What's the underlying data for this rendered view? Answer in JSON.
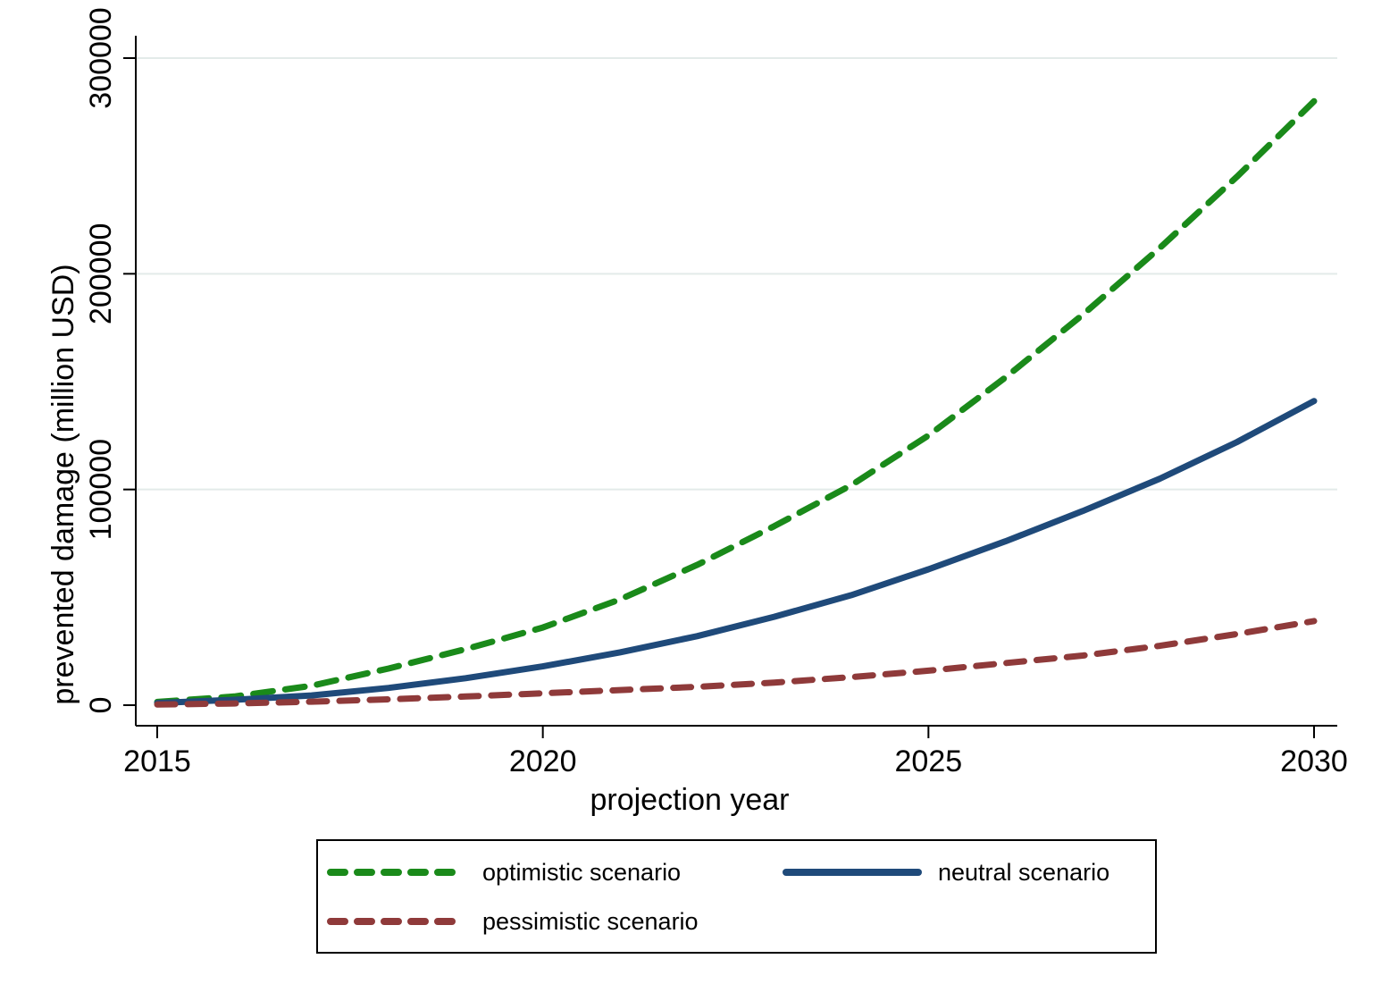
{
  "chart_data": {
    "type": "line",
    "title": "",
    "xlabel": "projection year",
    "ylabel": "prevented damage (million USD)",
    "xlim": [
      2015,
      2030
    ],
    "ylim": [
      0,
      300000
    ],
    "xticks": [
      2015,
      2020,
      2025,
      2030
    ],
    "yticks": [
      0,
      100000,
      200000,
      300000
    ],
    "xtick_labels": [
      "2015",
      "2020",
      "2025",
      "2030"
    ],
    "ytick_labels": [
      "0",
      "100000",
      "200000",
      "300000"
    ],
    "grid": "horizontal",
    "legend_position": "bottom",
    "x": [
      2015,
      2016,
      2017,
      2018,
      2019,
      2020,
      2021,
      2022,
      2023,
      2024,
      2025,
      2026,
      2027,
      2028,
      2029,
      2030
    ],
    "series": [
      {
        "name": "optimistic scenario",
        "color": "#1a8a1a",
        "style": "dashed",
        "values": [
          1500,
          4000,
          9000,
          17000,
          26000,
          36000,
          49000,
          65000,
          83000,
          102000,
          125000,
          152000,
          181000,
          212000,
          245000,
          280000
        ]
      },
      {
        "name": "neutral scenario",
        "color": "#1f4a7a",
        "style": "solid",
        "values": [
          1000,
          2500,
          4500,
          8000,
          12500,
          18000,
          24500,
          32000,
          41000,
          51000,
          63000,
          76000,
          90000,
          105000,
          122000,
          141000
        ]
      },
      {
        "name": "pessimistic scenario",
        "color": "#8f3a3a",
        "style": "dashed",
        "values": [
          300,
          800,
          1600,
          2700,
          4000,
          5500,
          7000,
          8500,
          10500,
          13000,
          16000,
          19500,
          23000,
          27500,
          33000,
          39000
        ]
      }
    ]
  }
}
